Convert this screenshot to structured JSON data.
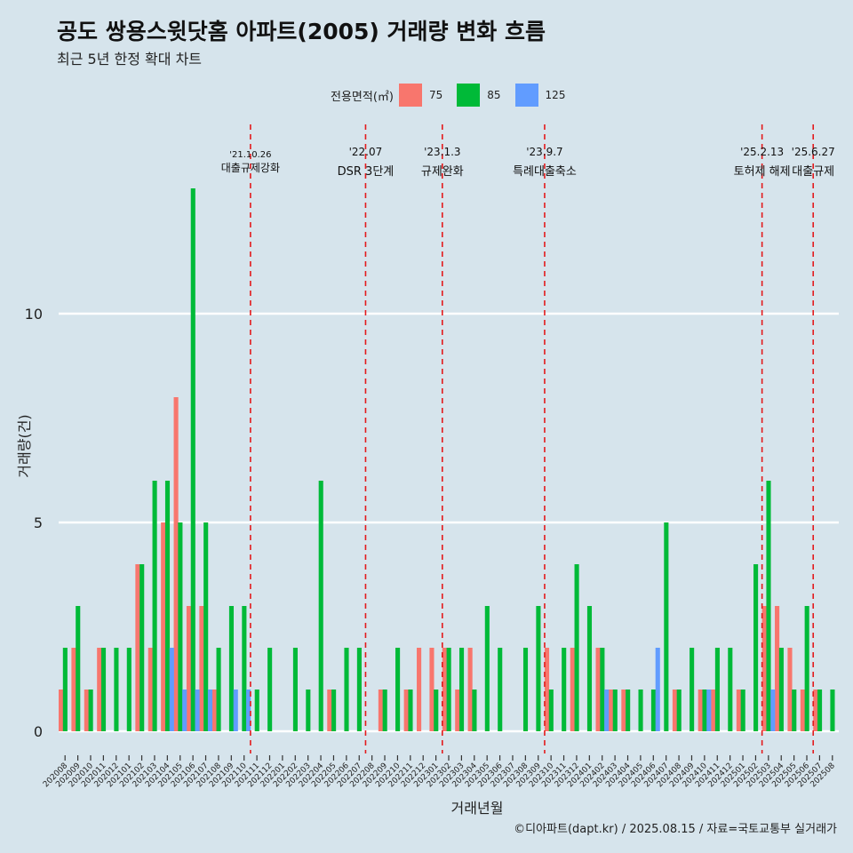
{
  "title": "공도 쌍용스윗닷홈 아파트(2005) 거래량 변화 흐름",
  "subtitle": "최근 5년 한정 확대 차트",
  "legend": {
    "title": "전용면적(㎡)",
    "items": [
      {
        "label": "75",
        "color": "#F8766D"
      },
      {
        "label": "85",
        "color": "#00BA38"
      },
      {
        "label": "125",
        "color": "#619CFF"
      }
    ]
  },
  "caption": "©디아파트(dapt.kr) / 2025.08.15 / 자료=국토교통부 실거래가",
  "chart_data": {
    "type": "bar",
    "xlabel": "거래년월",
    "ylabel": "거래량(건)",
    "ylim": [
      0,
      13
    ],
    "yticks": [
      0,
      5,
      10
    ],
    "categories": [
      "202008",
      "202009",
      "202010",
      "202011",
      "202012",
      "202101",
      "202102",
      "202103",
      "202104",
      "202105",
      "202106",
      "202107",
      "202108",
      "202109",
      "202110",
      "202111",
      "202112",
      "202201",
      "202202",
      "202203",
      "202204",
      "202205",
      "202206",
      "202207",
      "202208",
      "202209",
      "202210",
      "202211",
      "202212",
      "202301",
      "202302",
      "202303",
      "202304",
      "202305",
      "202306",
      "202307",
      "202308",
      "202309",
      "202310",
      "202311",
      "202312",
      "202401",
      "202402",
      "202403",
      "202404",
      "202405",
      "202406",
      "202407",
      "202408",
      "202409",
      "202410",
      "202411",
      "202412",
      "202501",
      "202502",
      "202503",
      "202504",
      "202505",
      "202506",
      "202507",
      "202508"
    ],
    "series": [
      {
        "name": "75",
        "color": "#F8766D",
        "values": [
          1,
          2,
          1,
          2,
          0,
          0,
          4,
          2,
          5,
          8,
          3,
          3,
          1,
          0,
          0,
          0,
          0,
          0,
          0,
          0,
          0,
          1,
          0,
          0,
          0,
          1,
          0,
          1,
          2,
          2,
          2,
          1,
          2,
          0,
          0,
          0,
          0,
          0,
          2,
          0,
          2,
          0,
          2,
          1,
          1,
          0,
          0,
          0,
          1,
          0,
          1,
          1,
          0,
          1,
          0,
          3,
          3,
          2,
          1,
          1,
          0
        ]
      },
      {
        "name": "85",
        "color": "#00BA38",
        "values": [
          2,
          3,
          1,
          2,
          2,
          2,
          4,
          6,
          6,
          5,
          13,
          5,
          2,
          3,
          3,
          1,
          2,
          0,
          2,
          1,
          6,
          1,
          2,
          2,
          0,
          1,
          2,
          1,
          0,
          1,
          2,
          2,
          1,
          3,
          2,
          0,
          2,
          3,
          1,
          2,
          4,
          3,
          2,
          1,
          1,
          1,
          1,
          5,
          1,
          2,
          1,
          2,
          2,
          1,
          4,
          6,
          2,
          1,
          3,
          1,
          1
        ]
      },
      {
        "name": "125",
        "color": "#619CFF",
        "values": [
          0,
          0,
          0,
          0,
          0,
          0,
          0,
          0,
          2,
          1,
          1,
          1,
          0,
          1,
          1,
          0,
          0,
          0,
          0,
          0,
          0,
          0,
          0,
          0,
          0,
          0,
          0,
          0,
          0,
          0,
          0,
          0,
          0,
          0,
          0,
          0,
          0,
          0,
          0,
          0,
          0,
          0,
          1,
          0,
          0,
          0,
          2,
          0,
          0,
          0,
          1,
          0,
          0,
          0,
          0,
          1,
          0,
          0,
          0,
          0,
          0
        ]
      }
    ],
    "events": [
      {
        "date": "'21.10.26",
        "label": "대출규제강화",
        "after": "202110"
      },
      {
        "date": "'22.07",
        "label": "DSR 3단계",
        "after": "202207"
      },
      {
        "date": "'23.1.3",
        "label": "규제완화",
        "after": "202301"
      },
      {
        "date": "'23.9.7",
        "label": "특례대출축소",
        "after": "202309"
      },
      {
        "date": "'25.2.13",
        "label": "토허제 해제",
        "after": "202502"
      },
      {
        "date": "'25.6.27",
        "label": "대출규제",
        "after": "202506"
      }
    ],
    "grid": true
  }
}
